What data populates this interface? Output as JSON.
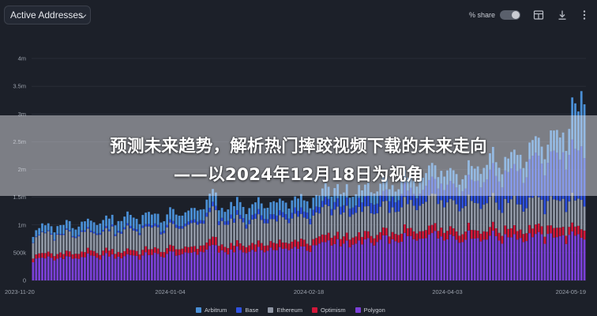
{
  "toolbar": {
    "metric_label": "Active Addresses",
    "share_label": "% share",
    "icons": [
      "chevron-down-icon",
      "toggle-switch",
      "table-icon",
      "download-icon",
      "more-icon"
    ]
  },
  "headline": {
    "line1": "预测未来趋势，解析热门摔跤视频下载的未来走向",
    "line2": "——以2024年12月18日为视角"
  },
  "colors": {
    "background": "#1c2029",
    "grid": "#343945",
    "Arbitrum": "#4a8fd6",
    "Base": "#2f52e0",
    "Ethereum": "#8f96a4",
    "Optimism": "#d2183a",
    "Polygon": "#7b40d8"
  },
  "chart_data": {
    "type": "bar",
    "stacked": true,
    "title": "Active Addresses",
    "y_tick_labels": [
      "0",
      "500k",
      "1m",
      "1.5m",
      "2m",
      "2.5m",
      "3m",
      "3.5m",
      "4m"
    ],
    "ylim": [
      0,
      4000000
    ],
    "x_range": [
      "2023-11-20",
      "2024-05-19"
    ],
    "x_tick_labels": [
      "2023-11-20",
      "2024-01-04",
      "2024-02-18",
      "2024-04-03",
      "2024-05-19"
    ],
    "legend_position": "bottom",
    "series_order_bottom_to_top": [
      "Polygon",
      "Optimism",
      "Ethereum",
      "Base",
      "Arbitrum"
    ],
    "series": [
      {
        "name": "Arbitrum",
        "color": "#4a8fd6",
        "key_values": [
          [
            0,
            120000
          ],
          [
            30,
            180000
          ],
          [
            60,
            200000
          ],
          [
            90,
            210000
          ],
          [
            130,
            220000
          ],
          [
            160,
            260000
          ],
          [
            175,
            380000
          ],
          [
            181,
            850000
          ]
        ]
      },
      {
        "name": "Base",
        "color": "#2f52e0",
        "key_values": [
          [
            0,
            10000
          ],
          [
            60,
            60000
          ],
          [
            100,
            120000
          ],
          [
            140,
            300000
          ],
          [
            181,
            900000
          ]
        ]
      },
      {
        "name": "Ethereum",
        "color": "#8f96a4",
        "key_values": [
          [
            0,
            320000
          ],
          [
            45,
            380000
          ],
          [
            90,
            420000
          ],
          [
            130,
            450000
          ],
          [
            181,
            480000
          ]
        ]
      },
      {
        "name": "Optimism",
        "color": "#d2183a",
        "key_values": [
          [
            0,
            80000
          ],
          [
            45,
            100000
          ],
          [
            90,
            120000
          ],
          [
            130,
            140000
          ],
          [
            181,
            150000
          ]
        ]
      },
      {
        "name": "Polygon",
        "color": "#7b40d8",
        "key_values": [
          [
            0,
            380000
          ],
          [
            45,
            460000
          ],
          [
            90,
            580000
          ],
          [
            130,
            760000
          ],
          [
            181,
            780000
          ]
        ]
      }
    ]
  }
}
